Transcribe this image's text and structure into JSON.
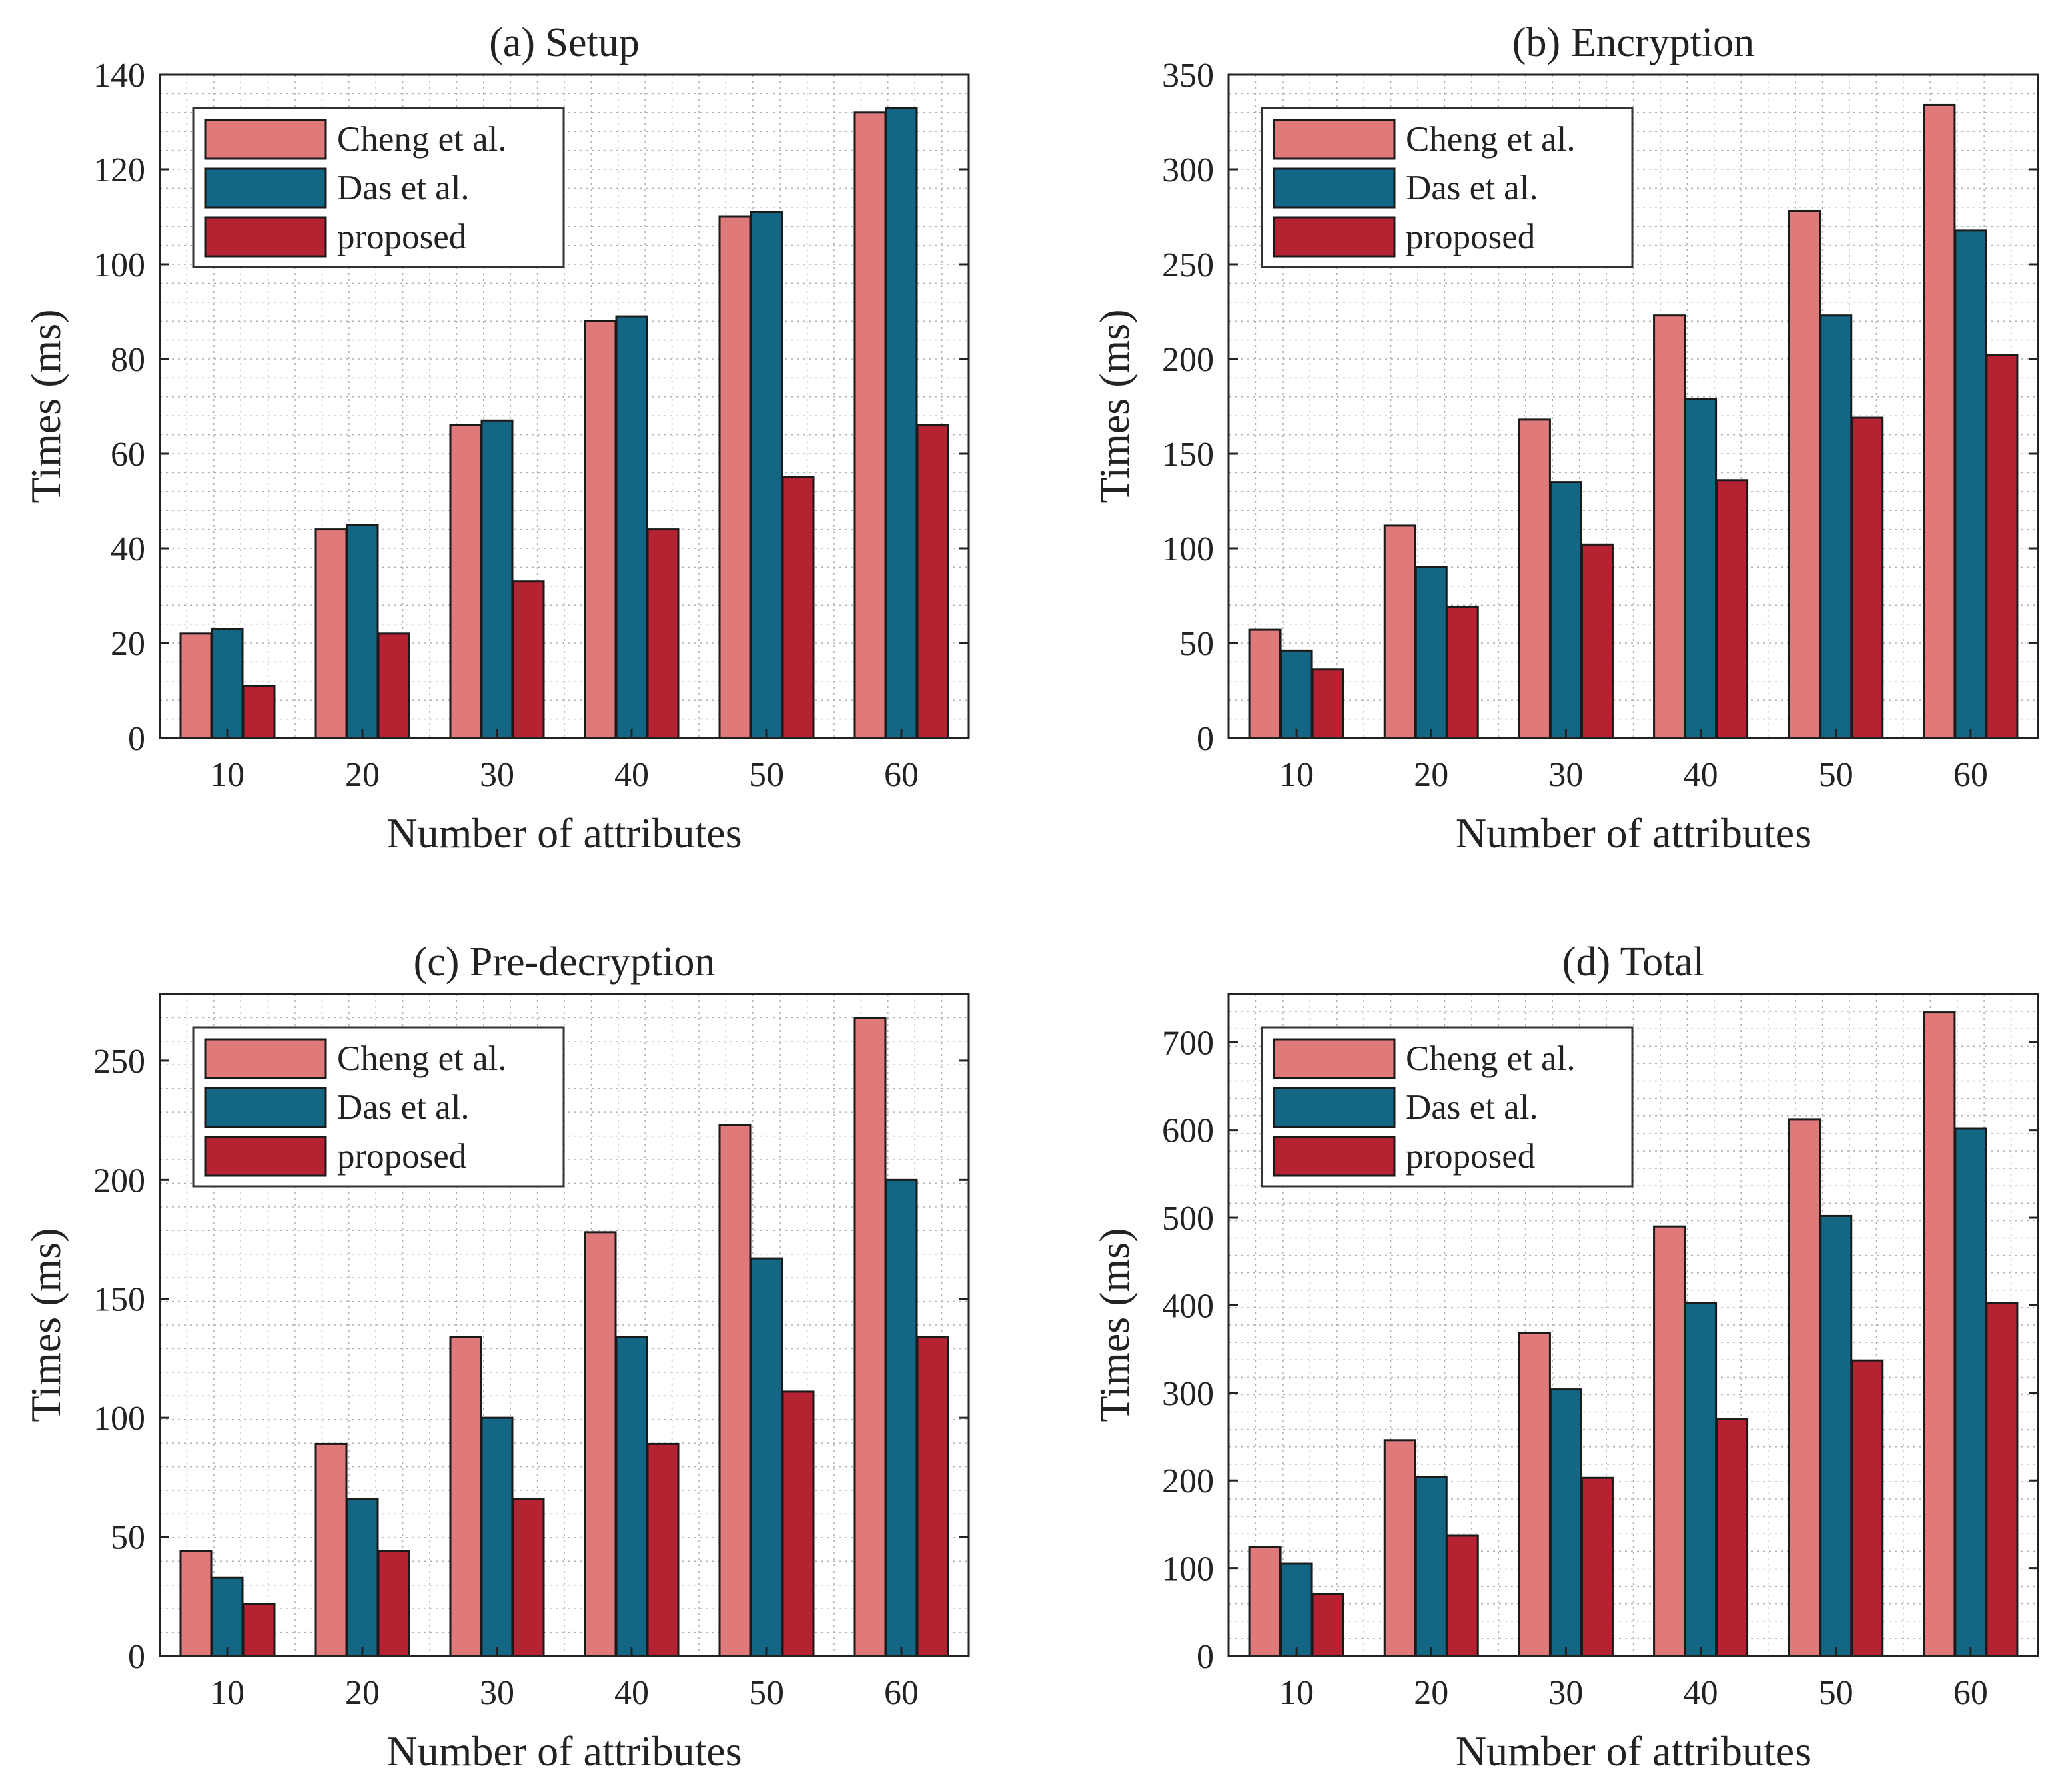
{
  "colors": {
    "cheng": "#e07a7a",
    "das": "#136684",
    "proposed": "#b52333",
    "axis": "#222222",
    "grid": "#b0b0b0"
  },
  "chart_data": [
    {
      "type": "bar",
      "title": "(a) Setup",
      "xlabel": "Number of attributes",
      "ylabel": "Times (ms)",
      "categories": [
        "10",
        "20",
        "30",
        "40",
        "50",
        "60"
      ],
      "ylim": [
        0,
        140
      ],
      "yticks": [
        0,
        20,
        40,
        60,
        80,
        100,
        120,
        140
      ],
      "grid": true,
      "legend": "top-left",
      "series": [
        {
          "name": "Cheng et al.",
          "values": [
            22,
            44,
            66,
            88,
            110,
            132
          ]
        },
        {
          "name": "Das et al.",
          "values": [
            23,
            45,
            67,
            89,
            111,
            133
          ]
        },
        {
          "name": "proposed",
          "values": [
            11,
            22,
            33,
            44,
            55,
            66
          ]
        }
      ]
    },
    {
      "type": "bar",
      "title": "(b) Encryption",
      "xlabel": "Number of attributes",
      "ylabel": "Times (ms)",
      "categories": [
        "10",
        "20",
        "30",
        "40",
        "50",
        "60"
      ],
      "ylim": [
        0,
        350
      ],
      "yticks": [
        0,
        50,
        100,
        150,
        200,
        250,
        300,
        350
      ],
      "grid": true,
      "legend": "top-left",
      "series": [
        {
          "name": "Cheng et al.",
          "values": [
            57,
            112,
            168,
            223,
            278,
            334
          ]
        },
        {
          "name": "Das et al.",
          "values": [
            46,
            90,
            135,
            179,
            223,
            268
          ]
        },
        {
          "name": "proposed",
          "values": [
            36,
            69,
            102,
            136,
            169,
            202
          ]
        }
      ]
    },
    {
      "type": "bar",
      "title": "(c) Pre-decryption",
      "xlabel": "Number of attributes",
      "ylabel": "Times (ms)",
      "categories": [
        "10",
        "20",
        "30",
        "40",
        "50",
        "60"
      ],
      "ylim": [
        0,
        278
      ],
      "yticks": [
        0,
        50,
        100,
        150,
        200,
        250
      ],
      "grid": true,
      "legend": "top-left",
      "series": [
        {
          "name": "Cheng et al.",
          "values": [
            44,
            89,
            134,
            178,
            223,
            268
          ]
        },
        {
          "name": "Das et al.",
          "values": [
            33,
            66,
            100,
            134,
            167,
            200
          ]
        },
        {
          "name": "proposed",
          "values": [
            22,
            44,
            66,
            89,
            111,
            134
          ]
        }
      ]
    },
    {
      "type": "bar",
      "title": "(d) Total",
      "xlabel": "Number of attributes",
      "ylabel": "Times (ms)",
      "categories": [
        "10",
        "20",
        "30",
        "40",
        "50",
        "60"
      ],
      "ylim": [
        0,
        755
      ],
      "yticks": [
        0,
        100,
        200,
        300,
        400,
        500,
        600,
        700
      ],
      "grid": true,
      "legend": "top-left",
      "series": [
        {
          "name": "Cheng et al.",
          "values": [
            124,
            246,
            368,
            490,
            612,
            734
          ]
        },
        {
          "name": "Das et al.",
          "values": [
            105,
            204,
            304,
            403,
            502,
            602
          ]
        },
        {
          "name": "proposed",
          "values": [
            71,
            137,
            203,
            270,
            337,
            403
          ]
        }
      ]
    }
  ]
}
